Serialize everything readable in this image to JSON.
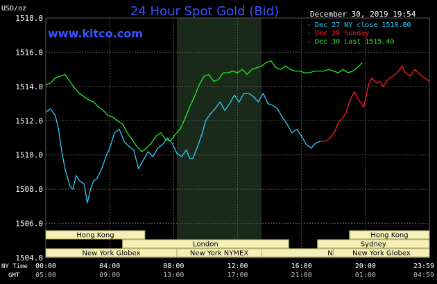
{
  "colors": {
    "background": "#000000",
    "grid": "#5a5a5a",
    "shade": "#1a2a1a",
    "axis_text": "#ffffff",
    "title": "#3355ff",
    "session_bar": "#f5f0b8",
    "session_text": "#000000",
    "cyan": "#33ccff",
    "red": "#ff2020",
    "green": "#22ee22"
  },
  "chart_data": {
    "type": "line",
    "title": "24 Hour Spot Gold (Bid)",
    "ylabel": "USD/oz",
    "watermark": "www.kitco.com",
    "timestamp": "December 30, 2019 19:54",
    "ylim": [
      1504.0,
      1518.0
    ],
    "y_ticks": [
      "1518.0",
      "1516.0",
      "1514.0",
      "1512.0",
      "1510.0",
      "1508.0",
      "1506.0",
      "1504.0"
    ],
    "x_row1_label": "NY Time",
    "x_row2_label": "GMT",
    "x_ticks_ny": [
      "00:00",
      "04:00",
      "08:00",
      "12:00",
      "16:00",
      "20:00",
      "23:59"
    ],
    "x_ticks_gmt": [
      "05:00",
      "09:00",
      "13:00",
      "17:00",
      "21:00",
      "01:00",
      "04:59"
    ],
    "legend": [
      {
        "text": "- Dec 27 NY close 1510.80",
        "color": "#33ccff"
      },
      {
        "text": "- Dec 29 Sunday",
        "color": "#ff2020"
      },
      {
        "text": "- Dec 30 Last 1515.40",
        "color": "#22ee22"
      }
    ],
    "sessions": [
      {
        "label": "Hong Kong",
        "start": 0,
        "end": 6.2,
        "row": 0
      },
      {
        "label": "London",
        "start": 4.8,
        "end": 15.2,
        "row": 1
      },
      {
        "label": "New York Globex",
        "start": 0,
        "end": 8.2,
        "row": 2
      },
      {
        "label": "New York NYMEX",
        "start": 8.2,
        "end": 13.5,
        "row": 2
      },
      {
        "label": "NY Globex",
        "start": 13.5,
        "end": 24,
        "row": 2
      },
      {
        "label": "Hong Kong",
        "start": 19.0,
        "end": 24,
        "row": 0
      },
      {
        "label": "Sydney",
        "start": 17.0,
        "end": 24,
        "row": 1
      },
      {
        "label": "New York Globex",
        "start": 18.0,
        "end": 24,
        "row": 2
      }
    ],
    "series": [
      {
        "name": "Dec 27 NY close",
        "color": "#33ccff",
        "x": [
          0,
          0.3,
          0.6,
          0.8,
          1.0,
          1.2,
          1.5,
          1.7,
          1.9,
          2.1,
          2.4,
          2.6,
          2.8,
          3.0,
          3.2,
          3.5,
          3.8,
          4.0,
          4.3,
          4.6,
          4.9,
          5.2,
          5.5,
          5.8,
          6.1,
          6.4,
          6.7,
          7.0,
          7.3,
          7.6,
          7.9,
          8.2,
          8.5,
          8.8,
          9.0,
          9.2,
          9.5,
          9.8,
          10.0,
          10.3,
          10.6,
          10.9,
          11.2,
          11.5,
          11.8,
          12.1,
          12.4,
          12.7,
          13.0,
          13.3,
          13.6,
          13.9,
          14.2,
          14.5,
          14.8,
          15.1,
          15.4,
          15.7,
          16.0,
          16.3,
          16.6,
          16.9,
          17.2
        ],
        "y": [
          1512.5,
          1512.7,
          1512.3,
          1511.5,
          1510.2,
          1509.2,
          1508.2,
          1508.0,
          1508.8,
          1508.5,
          1508.3,
          1507.2,
          1508.0,
          1508.5,
          1508.6,
          1509.2,
          1510.0,
          1510.4,
          1511.3,
          1511.5,
          1510.8,
          1510.5,
          1510.3,
          1509.2,
          1509.7,
          1510.2,
          1509.9,
          1510.4,
          1510.6,
          1511.0,
          1510.7,
          1510.1,
          1509.9,
          1510.3,
          1509.8,
          1509.8,
          1510.5,
          1511.3,
          1512.0,
          1512.4,
          1512.7,
          1513.1,
          1512.6,
          1513.0,
          1513.5,
          1513.1,
          1513.6,
          1513.6,
          1513.4,
          1513.1,
          1513.6,
          1513.0,
          1512.9,
          1512.7,
          1512.2,
          1511.8,
          1511.3,
          1511.5,
          1511.1,
          1510.6,
          1510.4,
          1510.7,
          1510.8
        ]
      },
      {
        "name": "Dec 29 Sunday",
        "color": "#ff2020",
        "x": [
          17.2,
          17.5,
          17.8,
          18.1,
          18.3,
          18.6,
          18.8,
          19.0,
          19.3,
          19.6,
          19.9,
          20.2,
          20.4,
          20.7,
          20.9,
          21.1,
          21.4,
          21.7,
          22.0,
          22.3,
          22.5,
          22.8,
          23.1,
          23.4,
          23.7,
          23.99
        ],
        "y": [
          1510.8,
          1510.8,
          1511.0,
          1511.4,
          1511.9,
          1512.2,
          1512.5,
          1513.1,
          1513.7,
          1513.2,
          1512.8,
          1514.1,
          1514.5,
          1514.2,
          1514.3,
          1514.0,
          1514.4,
          1514.6,
          1514.8,
          1515.2,
          1514.8,
          1514.6,
          1515.0,
          1514.7,
          1514.5,
          1514.3
        ]
      },
      {
        "name": "Dec 30 Last",
        "color": "#22ee22",
        "x": [
          0,
          0.3,
          0.6,
          0.9,
          1.2,
          1.5,
          1.8,
          2.1,
          2.4,
          2.7,
          3.0,
          3.3,
          3.6,
          3.9,
          4.2,
          4.5,
          4.8,
          5.1,
          5.4,
          5.7,
          6.0,
          6.3,
          6.6,
          6.9,
          7.2,
          7.5,
          7.8,
          8.1,
          8.4,
          8.7,
          9.0,
          9.3,
          9.6,
          9.9,
          10.2,
          10.5,
          10.8,
          11.1,
          11.4,
          11.7,
          12.0,
          12.3,
          12.6,
          12.9,
          13.2,
          13.5,
          13.8,
          14.1,
          14.4,
          14.7,
          15.0,
          15.3,
          15.6,
          15.9,
          16.2,
          16.5,
          16.8,
          17.1,
          17.4,
          17.7,
          18.0,
          18.3,
          18.6,
          18.9,
          19.2,
          19.5,
          19.8
        ],
        "y": [
          1514.1,
          1514.2,
          1514.5,
          1514.6,
          1514.7,
          1514.3,
          1513.9,
          1513.6,
          1513.4,
          1513.2,
          1513.1,
          1512.8,
          1512.6,
          1512.3,
          1512.2,
          1512.0,
          1511.8,
          1511.3,
          1510.9,
          1510.5,
          1510.2,
          1510.4,
          1510.7,
          1511.1,
          1511.3,
          1510.9,
          1510.8,
          1511.2,
          1511.5,
          1512.1,
          1512.8,
          1513.4,
          1514.1,
          1514.6,
          1514.7,
          1514.3,
          1514.4,
          1514.8,
          1514.8,
          1514.9,
          1514.8,
          1515.0,
          1514.7,
          1515.0,
          1515.1,
          1515.2,
          1515.4,
          1515.5,
          1515.1,
          1515.0,
          1515.2,
          1515.0,
          1514.9,
          1514.9,
          1514.8,
          1514.8,
          1514.9,
          1514.9,
          1514.9,
          1515.0,
          1514.9,
          1514.8,
          1515.0,
          1514.8,
          1514.9,
          1515.1,
          1515.4
        ]
      }
    ]
  }
}
